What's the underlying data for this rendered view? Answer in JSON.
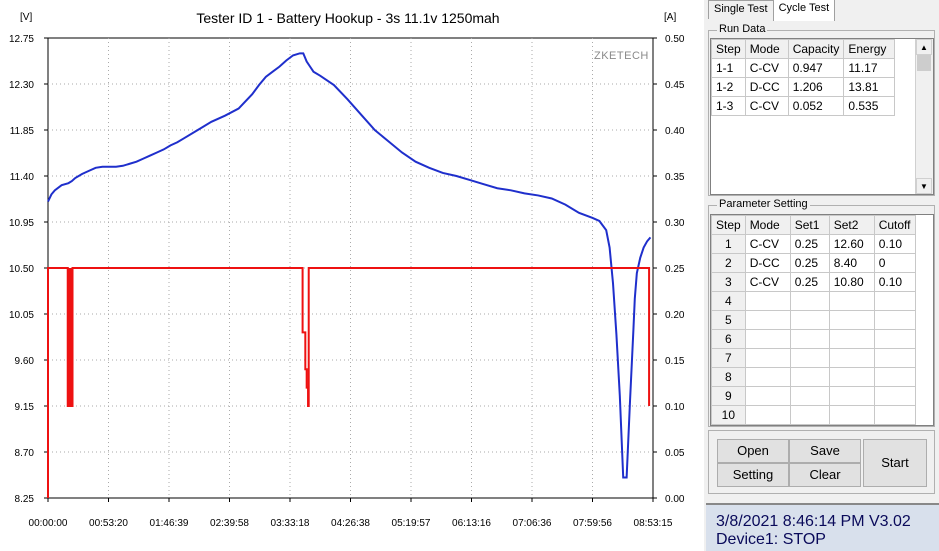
{
  "chart": {
    "title": "Tester ID 1 - Battery Hookup - 3s 11.1v 1250mah",
    "watermark": "ZKETECH",
    "left_unit": "[V]",
    "right_unit": "[A]",
    "left_ticks": [
      "12.75",
      "12.30",
      "11.85",
      "11.40",
      "10.95",
      "10.50",
      "10.05",
      "9.60",
      "9.15",
      "8.70",
      "8.25"
    ],
    "right_ticks": [
      "0.50",
      "0.45",
      "0.40",
      "0.35",
      "0.30",
      "0.25",
      "0.20",
      "0.15",
      "0.10",
      "0.05",
      "0.00"
    ],
    "x_ticks": [
      "00:00:00",
      "00:53:20",
      "01:46:39",
      "02:39:58",
      "03:33:18",
      "04:26:38",
      "05:19:57",
      "06:13:16",
      "07:06:36",
      "07:59:56",
      "08:53:15"
    ],
    "voltage_color": "#1f2fcc",
    "current_color": "#ee1111"
  },
  "chart_data": {
    "type": "line",
    "x_unit": "hours",
    "xlim": [
      0,
      8.8875
    ],
    "ylim_left": [
      8.25,
      12.75
    ],
    "ylim_right": [
      0.0,
      0.5
    ],
    "series": [
      {
        "axis": "left",
        "x": [
          0,
          0.05,
          0.1,
          0.2,
          0.3,
          0.35,
          0.4,
          0.5,
          0.6,
          0.7,
          0.8,
          0.9,
          1.0,
          1.1,
          1.2,
          1.3,
          1.4,
          1.5,
          1.6,
          1.7,
          1.8,
          1.9,
          2.0,
          2.2,
          2.4,
          2.6,
          2.8,
          3.0,
          3.1,
          3.2,
          3.3,
          3.4,
          3.5,
          3.6,
          3.7,
          3.75,
          3.8,
          3.85,
          3.9,
          4.0,
          4.2,
          4.4,
          4.6,
          4.8,
          5.0,
          5.2,
          5.4,
          5.6,
          5.8,
          6.0,
          6.2,
          6.4,
          6.6,
          6.8,
          7.0,
          7.2,
          7.4,
          7.6,
          7.8,
          8.0,
          8.1,
          8.2,
          8.25,
          8.3,
          8.35,
          8.4,
          8.45,
          8.5,
          8.55,
          8.6,
          8.62,
          8.65,
          8.7,
          8.75,
          8.8,
          8.85
        ],
        "y": [
          11.15,
          11.22,
          11.26,
          11.31,
          11.33,
          11.35,
          11.38,
          11.42,
          11.45,
          11.48,
          11.49,
          11.49,
          11.49,
          11.5,
          11.52,
          11.54,
          11.57,
          11.6,
          11.63,
          11.66,
          11.7,
          11.73,
          11.77,
          11.85,
          11.93,
          11.99,
          12.06,
          12.2,
          12.29,
          12.37,
          12.42,
          12.47,
          12.53,
          12.58,
          12.6,
          12.6,
          12.52,
          12.47,
          12.42,
          12.38,
          12.29,
          12.15,
          12.0,
          11.85,
          11.74,
          11.63,
          11.54,
          11.48,
          11.43,
          11.4,
          11.36,
          11.32,
          11.28,
          11.26,
          11.23,
          11.21,
          11.18,
          11.12,
          11.04,
          10.99,
          10.96,
          10.87,
          10.7,
          10.35,
          9.85,
          9.25,
          8.45,
          8.45,
          9.2,
          9.9,
          10.2,
          10.45,
          10.6,
          10.7,
          10.76,
          10.8
        ]
      },
      {
        "axis": "right",
        "x": [
          0,
          0.0,
          0.01,
          0.29,
          0.29,
          0.36,
          0.36,
          0.37,
          0.37,
          3.72,
          3.74,
          3.78,
          3.8,
          3.82,
          3.83,
          3.84,
          8.82,
          8.83,
          8.83
        ],
        "y": [
          0,
          0.25,
          0.25,
          0.25,
          0.1,
          0.1,
          0.25,
          0.25,
          0.25,
          0.25,
          0.18,
          0.14,
          0.12,
          0.1,
          0.25,
          0.25,
          0.25,
          0.25,
          0.1
        ]
      }
    ]
  },
  "tabs": [
    "Single Test",
    "Cycle Test"
  ],
  "run_data": {
    "title": "Run Data",
    "headers": [
      "Step",
      "Mode",
      "Capacity",
      "Energy"
    ],
    "rows": [
      [
        "1-1",
        "C-CV",
        "0.947",
        "11.17"
      ],
      [
        "1-2",
        "D-CC",
        "1.206",
        "13.81"
      ],
      [
        "1-3",
        "C-CV",
        "0.052",
        "0.535"
      ]
    ]
  },
  "params": {
    "title": "Parameter Setting",
    "headers": [
      "Step",
      "Mode",
      "Set1",
      "Set2",
      "Cutoff"
    ],
    "rows": [
      [
        "1",
        "C-CV",
        "0.25",
        "12.60",
        "0.10"
      ],
      [
        "2",
        "D-CC",
        "0.25",
        "8.40",
        "0"
      ],
      [
        "3",
        "C-CV",
        "0.25",
        "10.80",
        "0.10"
      ],
      [
        "4",
        "",
        "",
        "",
        ""
      ],
      [
        "5",
        "",
        "",
        "",
        ""
      ],
      [
        "6",
        "",
        "",
        "",
        ""
      ],
      [
        "7",
        "",
        "",
        "",
        ""
      ],
      [
        "8",
        "",
        "",
        "",
        ""
      ],
      [
        "9",
        "",
        "",
        "",
        ""
      ],
      [
        "10",
        "",
        "",
        "",
        ""
      ]
    ]
  },
  "buttons": {
    "open": "Open",
    "save": "Save",
    "setting": "Setting",
    "clear": "Clear",
    "start": "Start"
  },
  "status": {
    "line1": "3/8/2021 8:46:14 PM  V3.02",
    "line2": "Device1: STOP"
  }
}
